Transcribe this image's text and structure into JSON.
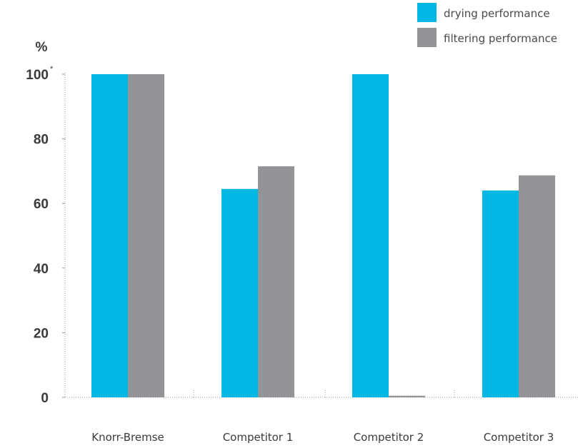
{
  "chart_data": {
    "type": "bar",
    "ylabel": "%",
    "ylim": [
      0,
      100
    ],
    "y_ticks": [
      {
        "value": 0,
        "label": "0"
      },
      {
        "value": 20,
        "label": "20"
      },
      {
        "value": 40,
        "label": "40"
      },
      {
        "value": 60,
        "label": "60"
      },
      {
        "value": 80,
        "label": "80"
      },
      {
        "value": 100,
        "label": "100"
      }
    ],
    "top_tick_note": "*",
    "categories": [
      "Knorr-Bremse",
      "Competitor 1",
      "Competitor 2",
      "Competitor 3"
    ],
    "series": [
      {
        "name": "drying performance",
        "color": "#00b8e3",
        "values": [
          100,
          64.5,
          100,
          64
        ]
      },
      {
        "name": "filtering performance",
        "color": "#939498",
        "values": [
          100,
          71.5,
          0.5,
          68.7
        ]
      }
    ],
    "legend_position": "top-right",
    "grid": false
  }
}
